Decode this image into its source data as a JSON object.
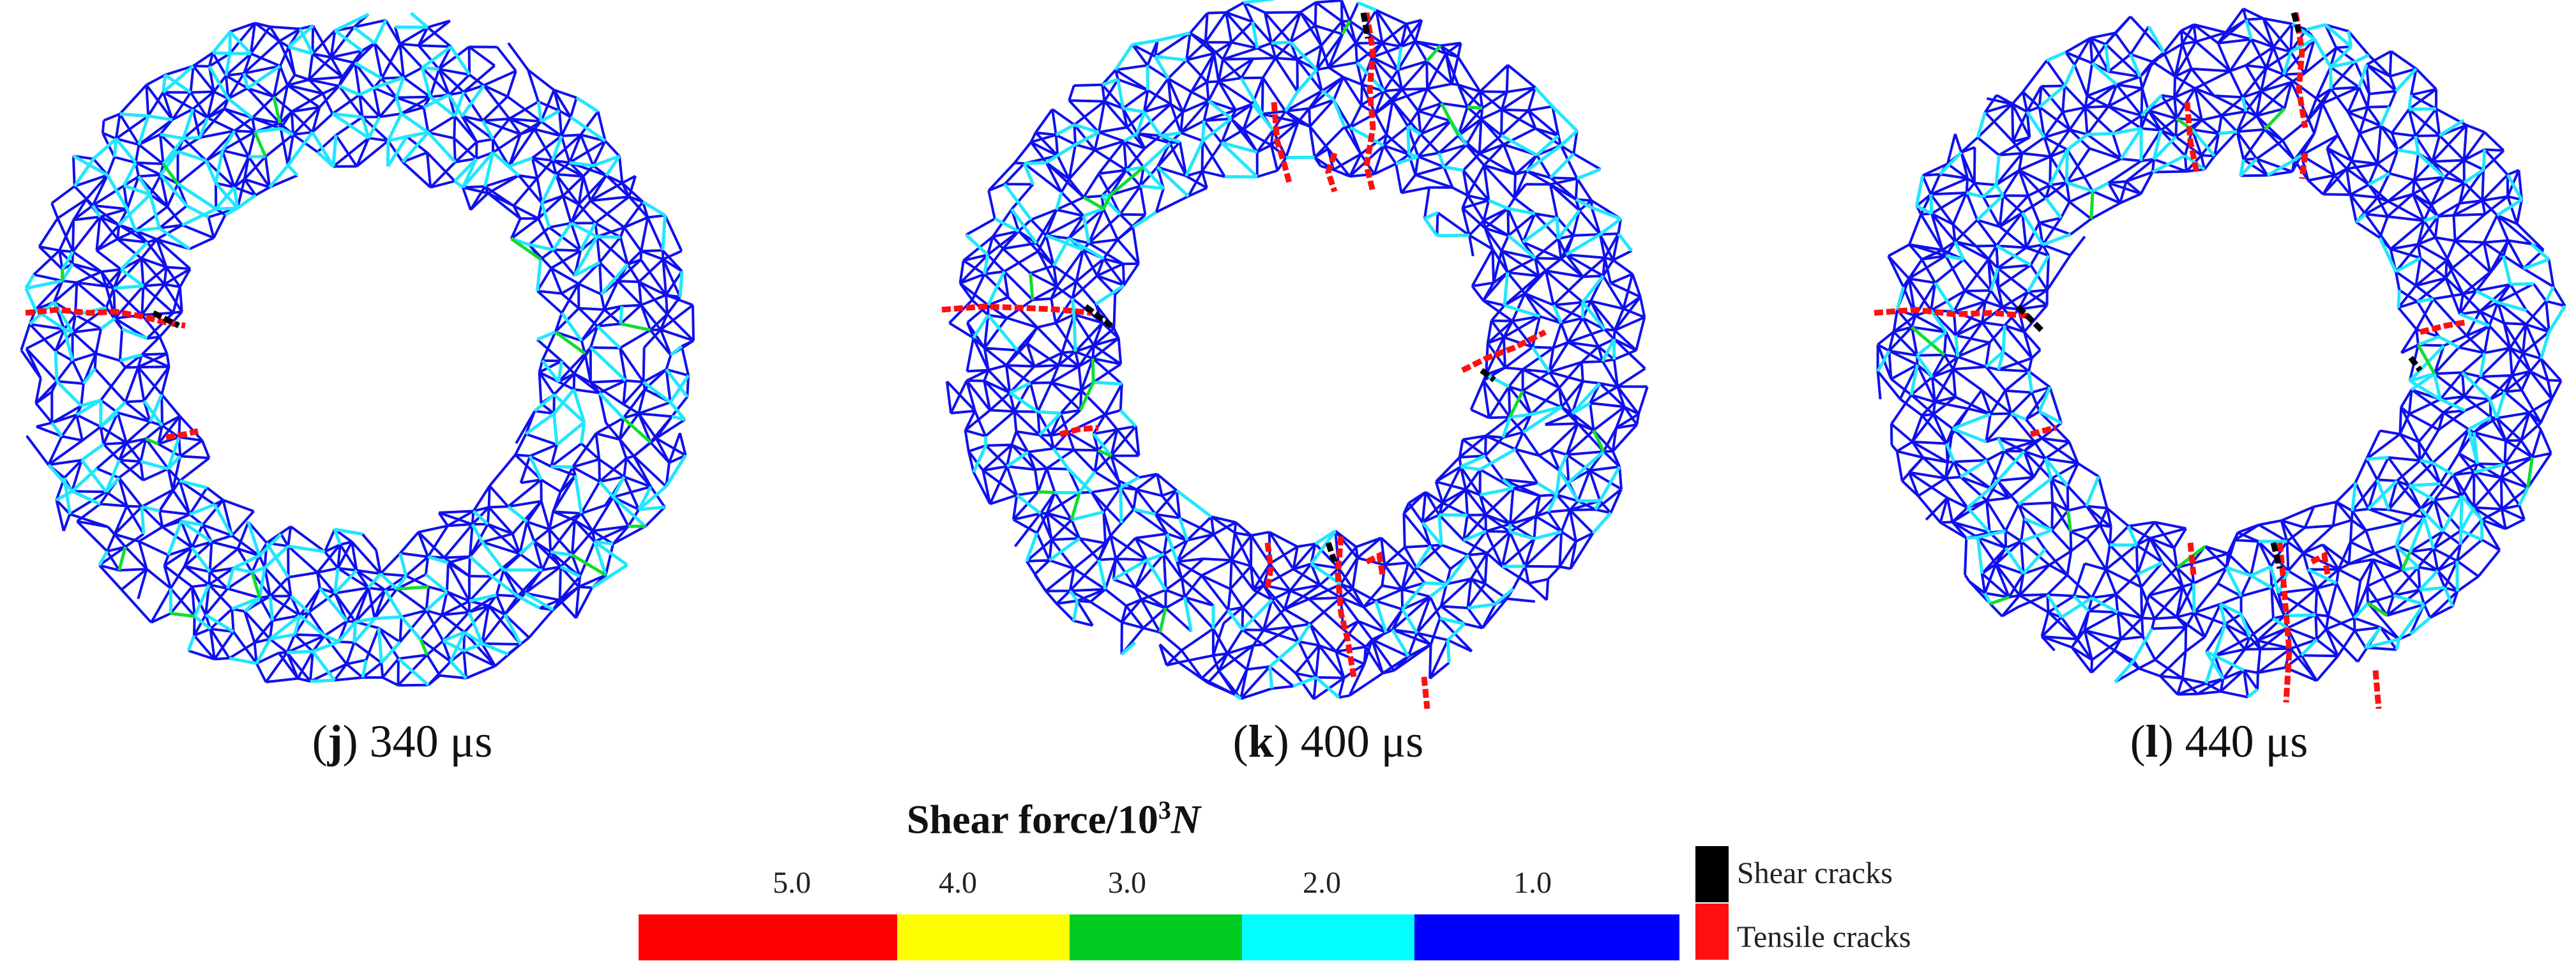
{
  "panels": [
    {
      "letter": "j",
      "time": "340 μs"
    },
    {
      "letter": "k",
      "time": "400 μs"
    },
    {
      "letter": "l",
      "time": "440 μs"
    }
  ],
  "legend": {
    "title_prefix": "Shear force/10",
    "title_exp": "3",
    "title_unit": "N",
    "ticks": [
      "5.0",
      "4.0",
      "3.0",
      "2.0",
      "1.0"
    ],
    "colors": [
      "#ff0000",
      "#ffff00",
      "#00cc22",
      "#00ffff",
      "#0000ff"
    ],
    "shear_label": "Shear cracks",
    "tensile_label": "Tensile cracks",
    "shear_color": "#000000",
    "tensile_color": "#ff1010"
  }
}
